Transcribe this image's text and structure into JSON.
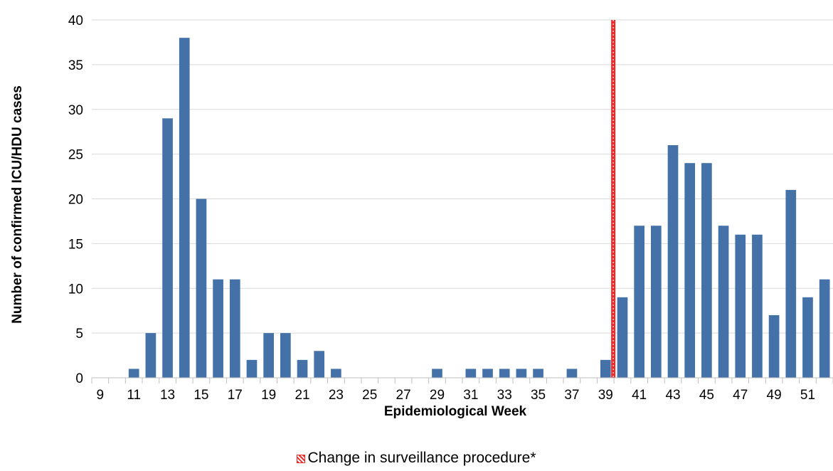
{
  "chart_data": {
    "type": "bar",
    "xlabel": "Epidemiological Week",
    "ylabel": "Number of confirmed ICU/HDU cases",
    "ylim": [
      0,
      40
    ],
    "yticks": [
      0,
      5,
      10,
      15,
      20,
      25,
      30,
      35,
      40
    ],
    "grid": true,
    "bar_color": "#4472a8",
    "categories": [
      9,
      10,
      11,
      12,
      13,
      14,
      15,
      16,
      17,
      18,
      19,
      20,
      21,
      22,
      23,
      24,
      25,
      26,
      27,
      28,
      29,
      30,
      31,
      32,
      33,
      34,
      35,
      36,
      37,
      38,
      39,
      40,
      41,
      42,
      43,
      44,
      45,
      46,
      47,
      48,
      49,
      50,
      51,
      52
    ],
    "tick_labels": [
      "9",
      "11",
      "13",
      "15",
      "17",
      "19",
      "21",
      "23",
      "25",
      "27",
      "29",
      "31",
      "33",
      "35",
      "37",
      "39",
      "41",
      "43",
      "45",
      "47",
      "49",
      "51"
    ],
    "values": [
      0,
      0,
      1,
      5,
      29,
      38,
      20,
      11,
      11,
      2,
      5,
      5,
      2,
      3,
      1,
      0,
      0,
      0,
      0,
      0,
      1,
      0,
      1,
      1,
      1,
      1,
      1,
      0,
      1,
      0,
      2,
      9,
      17,
      17,
      26,
      24,
      24,
      17,
      16,
      16,
      7,
      21,
      9,
      11
    ],
    "annotation": {
      "marker_week": 40,
      "color": "#ee2a2a",
      "label": "Change in surveillance procedure*"
    },
    "legend_position": "bottom-center"
  }
}
